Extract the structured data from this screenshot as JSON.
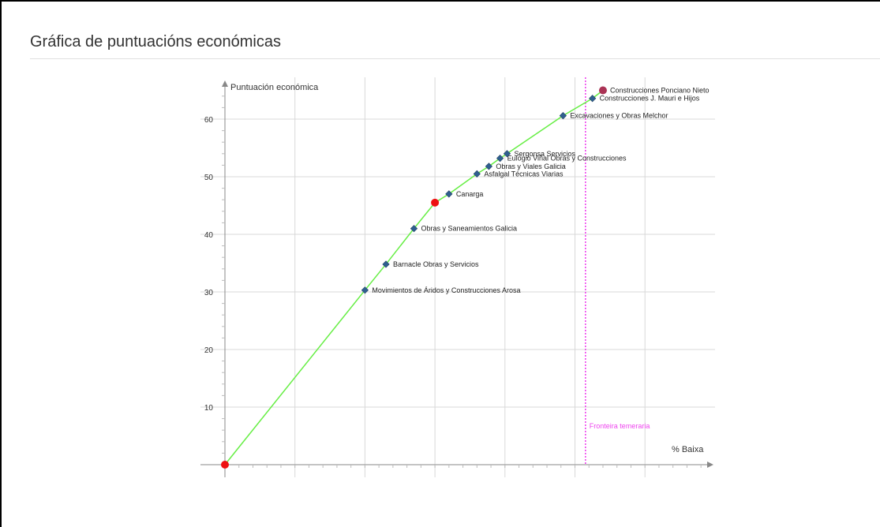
{
  "page": {
    "title": "Gráfica de puntuacións económicas"
  },
  "chart_data": {
    "type": "line",
    "xlabel": "% Baixa",
    "ylabel": "Puntuación económica",
    "xlim": [
      0,
      70
    ],
    "ylim": [
      -2,
      66
    ],
    "yticks": [
      10,
      20,
      30,
      40,
      50,
      60
    ],
    "grid": true,
    "line_color": "#66ee44",
    "threshold": {
      "label": "Fronteira temeraria",
      "x": 51.5,
      "color": "#ee44ee"
    },
    "bidders": [
      {
        "name": "Movimientos de Áridos y Construcciones Arosa",
        "x": 20.0,
        "y": 30.3
      },
      {
        "name": "Barnacle Obras y Servicios",
        "x": 23.0,
        "y": 34.8
      },
      {
        "name": "Obras y Saneamientos Galicia",
        "x": 27.0,
        "y": 41.0
      },
      {
        "name": "Canarga",
        "x": 32.0,
        "y": 47.0
      },
      {
        "name": "Asfalgal Técnicas Viarias",
        "x": 36.0,
        "y": 50.5
      },
      {
        "name": "Obras y Viales Galicia",
        "x": 37.7,
        "y": 51.8
      },
      {
        "name": "Eulogio Viñal Obras y Construcciones",
        "x": 39.3,
        "y": 53.2
      },
      {
        "name": "Sergonsa Servicios",
        "x": 40.3,
        "y": 54.0
      },
      {
        "name": "Excavaciones y Obras Melchor",
        "x": 48.3,
        "y": 60.6
      },
      {
        "name": "Construcciones J. Mauri e Hijos",
        "x": 52.5,
        "y": 63.6
      },
      {
        "name": "Construcciones Ponciano Nieto",
        "x": 54.0,
        "y": 65.0
      }
    ],
    "special_points": [
      {
        "x": 0,
        "y": 0,
        "color": "#ee1111"
      },
      {
        "x": 30.0,
        "y": 45.5,
        "color": "#ee1111"
      },
      {
        "x": 54.0,
        "y": 65.0,
        "color": "#aa3355"
      }
    ]
  }
}
